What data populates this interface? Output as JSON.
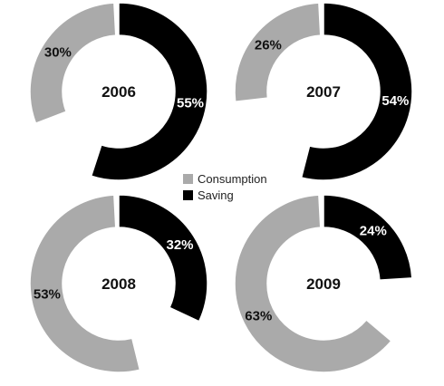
{
  "chart_data": {
    "type": "pie",
    "colors": {
      "Consumption": "#aaaaaa",
      "Saving": "#000000"
    },
    "legend": [
      "Consumption",
      "Saving"
    ],
    "charts": [
      {
        "title": "2006",
        "slices": [
          {
            "label": "Consumption",
            "value": 30,
            "text": "30%"
          },
          {
            "label": "Saving",
            "value": 55,
            "text": "55%"
          }
        ]
      },
      {
        "title": "2007",
        "slices": [
          {
            "label": "Consumption",
            "value": 26,
            "text": "26%"
          },
          {
            "label": "Saving",
            "value": 54,
            "text": "54%"
          }
        ]
      },
      {
        "title": "2008",
        "slices": [
          {
            "label": "Consumption",
            "value": 53,
            "text": "53%"
          },
          {
            "label": "Saving",
            "value": 32,
            "text": "32%"
          }
        ]
      },
      {
        "title": "2009",
        "slices": [
          {
            "label": "Consumption",
            "value": 63,
            "text": "63%"
          },
          {
            "label": "Saving",
            "value": 24,
            "text": "24%"
          }
        ]
      }
    ]
  }
}
